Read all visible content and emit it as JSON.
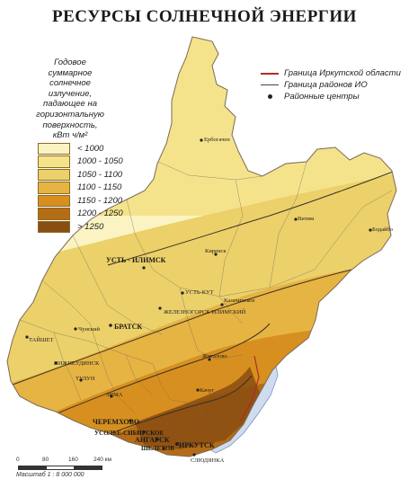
{
  "title": "РЕСУРСЫ СОЛНЕЧНОЙ ЭНЕРГИИ",
  "legend": {
    "title_lines": [
      "Годовое",
      "суммарное",
      "солнечное",
      "излучение,",
      "падающее на",
      "горизонтальную",
      "поверхность,",
      "кВт ч/м²"
    ],
    "classes": [
      {
        "label": "< 1000",
        "color": "#fbf3c2"
      },
      {
        "label": "1000 - 1050",
        "color": "#f5e38c"
      },
      {
        "label": "1050 - 1100",
        "color": "#ecd06a"
      },
      {
        "label": "1100 - 1150",
        "color": "#e6b443"
      },
      {
        "label": "1150 - 1200",
        "color": "#d7901f"
      },
      {
        "label": "1200 - 1250",
        "color": "#b56c16"
      },
      {
        "label": "> 1250",
        "color": "#8a4e12"
      }
    ]
  },
  "symbols": {
    "oblast_border": "Граница Иркутской области",
    "district_border": "Граница районов ИО",
    "district_centers": "Районные центры"
  },
  "scale": {
    "ticks": [
      "0",
      "80",
      "160",
      "240 км"
    ],
    "text": "Масштаб  1 : 8 000 000"
  },
  "cities": {
    "erbogachen": "Ербогачен",
    "vitim": "Витим",
    "bodaibo": "Бодайбо",
    "kirensk": "Киренск",
    "ust_ilimsk": "УСТЬ - ИЛИМСК",
    "ust_kut": "УСТЬ-КУТ",
    "zheleznogorsk": "ЖЕЛЕЗНОГОРСК-ИЛИМСКИЙ",
    "bratsk": "БРАТСК",
    "chunsky": "Чунский",
    "taishet": "ТАЙШЕТ",
    "nizhneudinsk": "НИЖНЕУДИНСК",
    "tulun": "ТУЛУН",
    "zima": "ЗИМА",
    "cheremkhovo": "ЧЕРЕМХОВО",
    "usolye": "УСОЛЬЕ-СИБИРСКОЕ",
    "angarsk": "АНГАРСК",
    "shelekhov": "ШЕЛЕХОВ",
    "irkutsk": "ИРКУТСК",
    "kazachinskoe": "Казачинское",
    "zhigalovo": "Жигалово",
    "kachug": "Качуг",
    "slyudyanka": "СЛЮДЯНКА"
  }
}
